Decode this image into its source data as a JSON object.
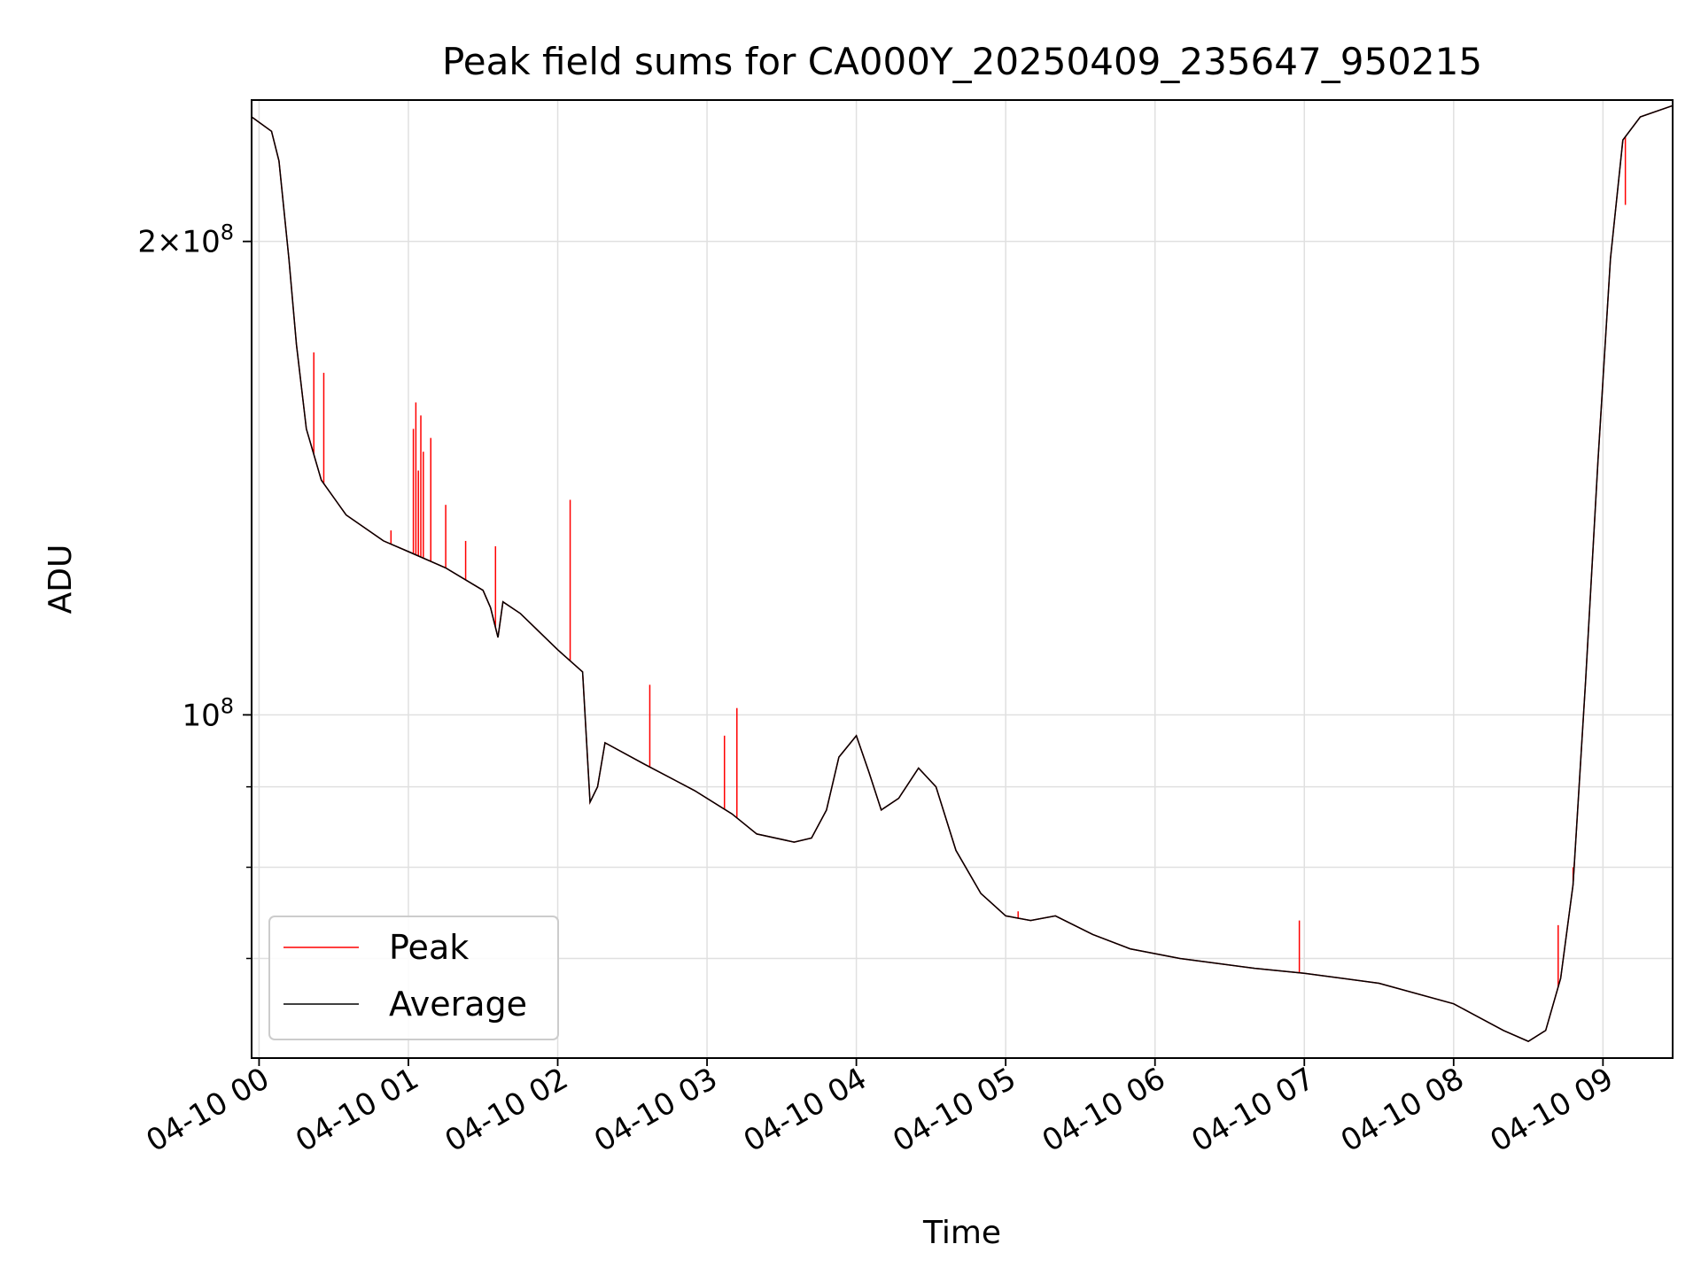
{
  "chart_data": {
    "type": "line",
    "title": "Peak field sums for CA000Y_20250409_235647_950215",
    "xlabel": "Time",
    "ylabel": "ADU",
    "yscale": "log",
    "grid": true,
    "legend_position": "lower-left",
    "x_ticks": [
      "04-10 00",
      "04-10 01",
      "04-10 02",
      "04-10 03",
      "04-10 04",
      "04-10 05",
      "04-10 06",
      "04-10 07",
      "04-10 08",
      "04-10 09"
    ],
    "y_ticks": [
      {
        "value": 100000000,
        "base": "10",
        "exponent": "8",
        "prefix": ""
      },
      {
        "value": 200000000,
        "base": "10",
        "exponent": "8",
        "prefix": "2×"
      }
    ],
    "xlim": [
      "2025-04-09 23:57",
      "2025-04-10 09:28"
    ],
    "ylim": [
      60500000,
      246000000
    ],
    "series": [
      {
        "name": "Average",
        "color": "#000000",
        "points": [
          [
            "2025-04-09 23:57",
            240000000
          ],
          [
            "2025-04-10 00:05",
            235000000
          ],
          [
            "2025-04-10 00:08",
            225000000
          ],
          [
            "2025-04-10 00:12",
            195000000
          ],
          [
            "2025-04-10 00:15",
            172000000
          ],
          [
            "2025-04-10 00:19",
            152000000
          ],
          [
            "2025-04-10 00:25",
            141000000
          ],
          [
            "2025-04-10 00:35",
            134000000
          ],
          [
            "2025-04-10 00:50",
            129000000
          ],
          [
            "2025-04-10 01:00",
            127000000
          ],
          [
            "2025-04-10 01:15",
            124000000
          ],
          [
            "2025-04-10 01:30",
            120000000
          ],
          [
            "2025-04-10 01:33",
            117000000
          ],
          [
            "2025-04-10 01:36",
            112000000
          ],
          [
            "2025-04-10 01:38",
            118000000
          ],
          [
            "2025-04-10 01:45",
            116000000
          ],
          [
            "2025-04-10 02:00",
            110000000
          ],
          [
            "2025-04-10 02:10",
            106500000
          ],
          [
            "2025-04-10 02:13",
            88000000
          ],
          [
            "2025-04-10 02:16",
            90000000
          ],
          [
            "2025-04-10 02:19",
            96000000
          ],
          [
            "2025-04-10 02:35",
            93000000
          ],
          [
            "2025-04-10 02:55",
            89500000
          ],
          [
            "2025-04-10 03:10",
            86500000
          ],
          [
            "2025-04-10 03:20",
            84000000
          ],
          [
            "2025-04-10 03:35",
            83000000
          ],
          [
            "2025-04-10 03:42",
            83500000
          ],
          [
            "2025-04-10 03:48",
            87000000
          ],
          [
            "2025-04-10 03:53",
            94000000
          ],
          [
            "2025-04-10 04:00",
            97000000
          ],
          [
            "2025-04-10 04:05",
            92000000
          ],
          [
            "2025-04-10 04:10",
            87000000
          ],
          [
            "2025-04-10 04:17",
            88500000
          ],
          [
            "2025-04-10 04:25",
            92500000
          ],
          [
            "2025-04-10 04:32",
            90000000
          ],
          [
            "2025-04-10 04:40",
            82000000
          ],
          [
            "2025-04-10 04:50",
            77000000
          ],
          [
            "2025-04-10 05:00",
            74500000
          ],
          [
            "2025-04-10 05:10",
            74000000
          ],
          [
            "2025-04-10 05:20",
            74500000
          ],
          [
            "2025-04-10 05:35",
            72500000
          ],
          [
            "2025-04-10 05:50",
            71000000
          ],
          [
            "2025-04-10 06:10",
            70000000
          ],
          [
            "2025-04-10 06:40",
            69000000
          ],
          [
            "2025-04-10 07:00",
            68500000
          ],
          [
            "2025-04-10 07:30",
            67500000
          ],
          [
            "2025-04-10 08:00",
            65500000
          ],
          [
            "2025-04-10 08:20",
            63000000
          ],
          [
            "2025-04-10 08:30",
            62000000
          ],
          [
            "2025-04-10 08:37",
            63000000
          ],
          [
            "2025-04-10 08:43",
            68000000
          ],
          [
            "2025-04-10 08:48",
            78000000
          ],
          [
            "2025-04-10 08:53",
            105000000
          ],
          [
            "2025-04-10 08:58",
            145000000
          ],
          [
            "2025-04-10 09:03",
            195000000
          ],
          [
            "2025-04-10 09:08",
            232000000
          ],
          [
            "2025-04-10 09:15",
            240000000
          ],
          [
            "2025-04-10 09:28",
            244000000
          ]
        ]
      },
      {
        "name": "Peak",
        "color": "#ff0000",
        "spikes": [
          [
            "2025-04-10 00:22",
            170000000
          ],
          [
            "2025-04-10 00:26",
            165000000
          ],
          [
            "2025-04-10 00:53",
            131000000
          ],
          [
            "2025-04-10 01:02",
            152000000
          ],
          [
            "2025-04-10 01:03",
            158000000
          ],
          [
            "2025-04-10 01:04",
            143000000
          ],
          [
            "2025-04-10 01:05",
            155000000
          ],
          [
            "2025-04-10 01:06",
            147000000
          ],
          [
            "2025-04-10 01:09",
            150000000
          ],
          [
            "2025-04-10 01:15",
            136000000
          ],
          [
            "2025-04-10 01:23",
            129000000
          ],
          [
            "2025-04-10 01:35",
            128000000
          ],
          [
            "2025-04-10 02:05",
            137000000
          ],
          [
            "2025-04-10 02:37",
            104500000
          ],
          [
            "2025-04-10 03:07",
            97000000
          ],
          [
            "2025-04-10 03:12",
            101000000
          ],
          [
            "2025-04-10 05:05",
            75000000
          ],
          [
            "2025-04-10 06:58",
            74000000
          ],
          [
            "2025-04-10 08:42",
            73500000
          ],
          [
            "2025-04-10 08:48",
            80000000
          ],
          [
            "2025-04-10 09:09",
            211000000
          ]
        ]
      }
    ]
  }
}
